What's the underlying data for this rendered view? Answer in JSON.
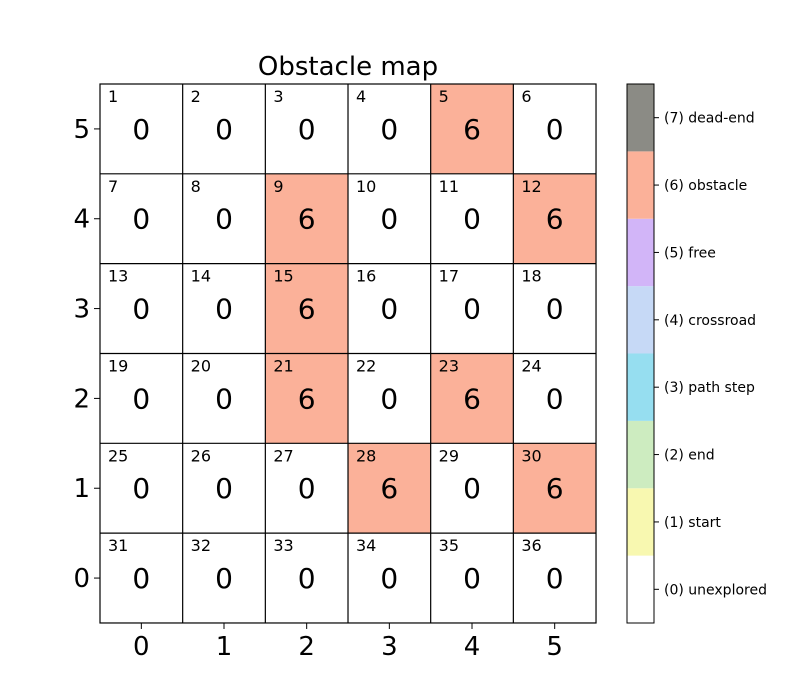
{
  "chart_data": {
    "type": "heatmap",
    "title": "Obstacle map",
    "xlabel": "",
    "ylabel": "",
    "x_ticks": [
      "0",
      "1",
      "2",
      "3",
      "4",
      "5"
    ],
    "y_ticks": [
      "5",
      "4",
      "3",
      "2",
      "1",
      "0"
    ],
    "grid": true,
    "cells": [
      [
        {
          "index": "1",
          "value": "0"
        },
        {
          "index": "2",
          "value": "0"
        },
        {
          "index": "3",
          "value": "0"
        },
        {
          "index": "4",
          "value": "0"
        },
        {
          "index": "5",
          "value": "6"
        },
        {
          "index": "6",
          "value": "0"
        }
      ],
      [
        {
          "index": "7",
          "value": "0"
        },
        {
          "index": "8",
          "value": "0"
        },
        {
          "index": "9",
          "value": "6"
        },
        {
          "index": "10",
          "value": "0"
        },
        {
          "index": "11",
          "value": "0"
        },
        {
          "index": "12",
          "value": "6"
        }
      ],
      [
        {
          "index": "13",
          "value": "0"
        },
        {
          "index": "14",
          "value": "0"
        },
        {
          "index": "15",
          "value": "6"
        },
        {
          "index": "16",
          "value": "0"
        },
        {
          "index": "17",
          "value": "0"
        },
        {
          "index": "18",
          "value": "0"
        }
      ],
      [
        {
          "index": "19",
          "value": "0"
        },
        {
          "index": "20",
          "value": "0"
        },
        {
          "index": "21",
          "value": "6"
        },
        {
          "index": "22",
          "value": "0"
        },
        {
          "index": "23",
          "value": "6"
        },
        {
          "index": "24",
          "value": "0"
        }
      ],
      [
        {
          "index": "25",
          "value": "0"
        },
        {
          "index": "26",
          "value": "0"
        },
        {
          "index": "27",
          "value": "0"
        },
        {
          "index": "28",
          "value": "6"
        },
        {
          "index": "29",
          "value": "0"
        },
        {
          "index": "30",
          "value": "6"
        }
      ],
      [
        {
          "index": "31",
          "value": "0"
        },
        {
          "index": "32",
          "value": "0"
        },
        {
          "index": "33",
          "value": "0"
        },
        {
          "index": "34",
          "value": "0"
        },
        {
          "index": "35",
          "value": "0"
        },
        {
          "index": "36",
          "value": "0"
        }
      ]
    ],
    "colorbar": [
      {
        "value": 0,
        "label": "(0) unexplored",
        "color": "#ffffff"
      },
      {
        "value": 1,
        "label": "(1) start",
        "color": "#f8f8b0"
      },
      {
        "value": 2,
        "label": "(2) end",
        "color": "#cdecc0"
      },
      {
        "value": 3,
        "label": "(3) path step",
        "color": "#96def0"
      },
      {
        "value": 4,
        "label": "(4) crossroad",
        "color": "#c6d9f6"
      },
      {
        "value": 5,
        "label": "(5) free",
        "color": "#d2b5f8"
      },
      {
        "value": 6,
        "label": "(6) obstacle",
        "color": "#fbb199"
      },
      {
        "value": 7,
        "label": "(7) dead-end",
        "color": "#8b8b85"
      }
    ]
  }
}
